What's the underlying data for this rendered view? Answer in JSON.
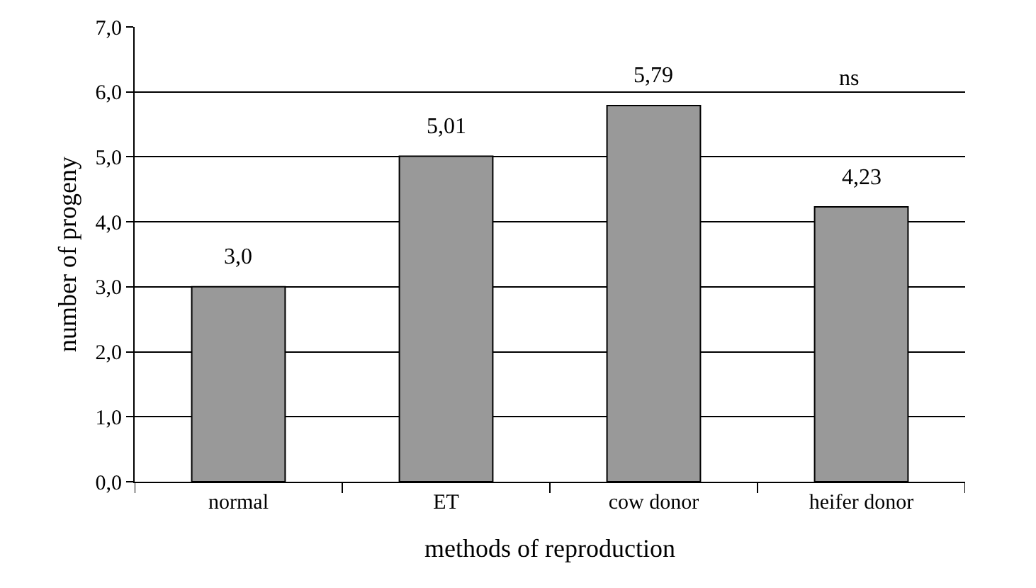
{
  "chart_data": {
    "type": "bar",
    "xlabel": "methods of reproduction",
    "ylabel": "number of progeny",
    "categories": [
      "normal",
      "ET",
      "cow donor",
      "heifer donor"
    ],
    "values": [
      3.0,
      5.01,
      5.79,
      4.23
    ],
    "value_labels": [
      "3,0",
      "5,01",
      "5,79",
      "4,23"
    ],
    "color": "#999999",
    "ylim": [
      0,
      7
    ],
    "yticks": [
      {
        "value": 0,
        "label": "0,0"
      },
      {
        "value": 1,
        "label": "1,0"
      },
      {
        "value": 2,
        "label": "2,0"
      },
      {
        "value": 3,
        "label": "3,0"
      },
      {
        "value": 4,
        "label": "4,0"
      },
      {
        "value": 5,
        "label": "5,0"
      },
      {
        "value": 6,
        "label": "6,0"
      },
      {
        "value": 7,
        "label": "7,0"
      }
    ],
    "grid": "y",
    "annotations": [
      "ns"
    ]
  }
}
